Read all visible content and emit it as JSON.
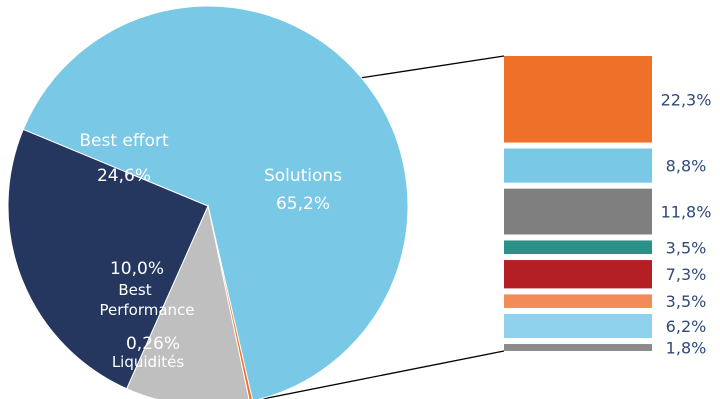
{
  "chart_data": [
    {
      "type": "pie",
      "slices": [
        {
          "label": "Solutions",
          "value": 65.2,
          "value_label": "65,2%",
          "color": "#78c8e6"
        },
        {
          "label": "Liquidités",
          "value": 0.26,
          "value_label": "0,26%",
          "color": "#ee7029"
        },
        {
          "label": "Best Performance",
          "value": 10.0,
          "value_label": "10,0%",
          "color": "#bfbfbf"
        },
        {
          "label": "Best effort",
          "value": 24.6,
          "value_label": "24,6%",
          "color": "#26375f"
        }
      ]
    },
    {
      "type": "bar",
      "stacked": true,
      "breakdown_of": "Solutions",
      "segments": [
        {
          "value": 22.3,
          "value_label": "22,3%",
          "color": "#ee7029"
        },
        {
          "value": 8.8,
          "value_label": "8,8%",
          "color": "#78c8e6"
        },
        {
          "value": 11.8,
          "value_label": "11,8%",
          "color": "#7f7f7f"
        },
        {
          "value": 3.5,
          "value_label": "3,5%",
          "color": "#2a9088"
        },
        {
          "value": 7.3,
          "value_label": "7,3%",
          "color": "#b31f25"
        },
        {
          "value": 3.5,
          "value_label": "3,5%",
          "color": "#f28b57"
        },
        {
          "value": 6.2,
          "value_label": "6,2%",
          "color": "#8ed2ee"
        },
        {
          "value": 1.8,
          "value_label": "1,8%",
          "color": "#8c8c8c"
        }
      ]
    }
  ]
}
